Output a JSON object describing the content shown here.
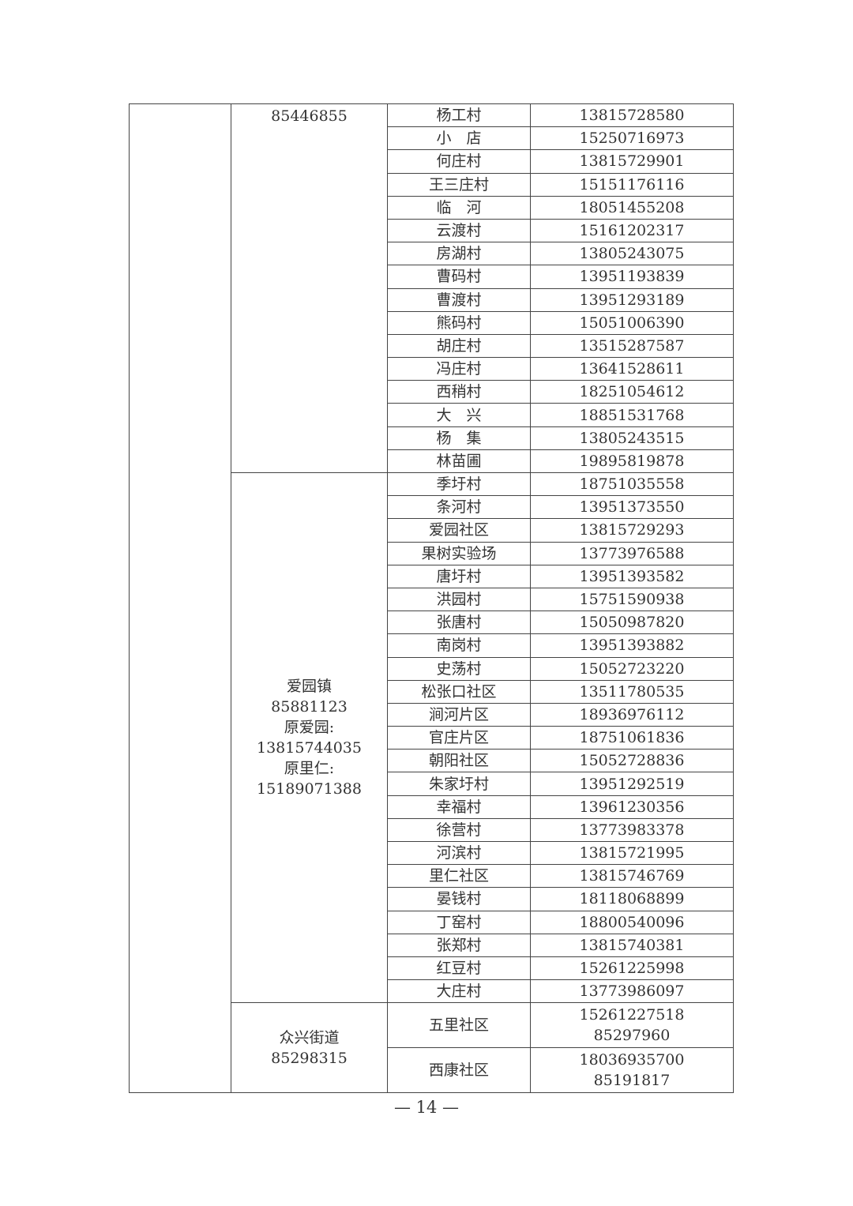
{
  "groups": [
    {
      "contact": [
        "85446855"
      ],
      "align": "top",
      "rows": [
        {
          "name": "杨工村",
          "phone": [
            "13815728580"
          ]
        },
        {
          "name": "小　店",
          "phone": [
            "15250716973"
          ]
        },
        {
          "name": "何庄村",
          "phone": [
            "13815729901"
          ]
        },
        {
          "name": "王三庄村",
          "phone": [
            "15151176116"
          ]
        },
        {
          "name": "临　河",
          "phone": [
            "18051455208"
          ]
        },
        {
          "name": "云渡村",
          "phone": [
            "15161202317"
          ]
        },
        {
          "name": "房湖村",
          "phone": [
            "13805243075"
          ]
        },
        {
          "name": "曹码村",
          "phone": [
            "13951193839"
          ]
        },
        {
          "name": "曹渡村",
          "phone": [
            "13951293189"
          ]
        },
        {
          "name": "熊码村",
          "phone": [
            "15051006390"
          ]
        },
        {
          "name": "胡庄村",
          "phone": [
            "13515287587"
          ]
        },
        {
          "name": "冯庄村",
          "phone": [
            "13641528611"
          ]
        },
        {
          "name": "西稍村",
          "phone": [
            "18251054612"
          ]
        },
        {
          "name": "大　兴",
          "phone": [
            "18851531768"
          ]
        },
        {
          "name": "杨　集",
          "phone": [
            "13805243515"
          ]
        },
        {
          "name": "林苗圃",
          "phone": [
            "19895819878"
          ]
        }
      ]
    },
    {
      "contact": [
        "爱园镇",
        "85881123",
        "原爱园:",
        "13815744035",
        "原里仁:",
        "15189071388"
      ],
      "align": "middle",
      "rows": [
        {
          "name": "季圩村",
          "phone": [
            "18751035558"
          ]
        },
        {
          "name": "条河村",
          "phone": [
            "13951373550"
          ]
        },
        {
          "name": "爱园社区",
          "phone": [
            "13815729293"
          ]
        },
        {
          "name": "果树实验场",
          "phone": [
            "13773976588"
          ]
        },
        {
          "name": "唐圩村",
          "phone": [
            "13951393582"
          ]
        },
        {
          "name": "洪园村",
          "phone": [
            "15751590938"
          ]
        },
        {
          "name": "张唐村",
          "phone": [
            "15050987820"
          ]
        },
        {
          "name": "南岗村",
          "phone": [
            "13951393882"
          ]
        },
        {
          "name": "史荡村",
          "phone": [
            "15052723220"
          ]
        },
        {
          "name": "松张口社区",
          "phone": [
            "13511780535"
          ]
        },
        {
          "name": "涧河片区",
          "phone": [
            "18936976112"
          ]
        },
        {
          "name": "官庄片区",
          "phone": [
            "18751061836"
          ]
        },
        {
          "name": "朝阳社区",
          "phone": [
            "15052728836"
          ]
        },
        {
          "name": "朱家圩村",
          "phone": [
            "13951292519"
          ]
        },
        {
          "name": "幸福村",
          "phone": [
            "13961230356"
          ]
        },
        {
          "name": "徐营村",
          "phone": [
            "13773983378"
          ]
        },
        {
          "name": "河滨村",
          "phone": [
            "13815721995"
          ]
        },
        {
          "name": "里仁社区",
          "phone": [
            "13815746769"
          ]
        },
        {
          "name": "晏钱村",
          "phone": [
            "18118068899"
          ]
        },
        {
          "name": "丁窑村",
          "phone": [
            "18800540096"
          ]
        },
        {
          "name": "张郑村",
          "phone": [
            "13815740381"
          ]
        },
        {
          "name": "红豆村",
          "phone": [
            "15261225998"
          ]
        },
        {
          "name": "大庄村",
          "phone": [
            "13773986097"
          ]
        }
      ]
    },
    {
      "contact": [
        "众兴街道",
        "85298315"
      ],
      "align": "middle",
      "rows": [
        {
          "name": "五里社区",
          "phone": [
            "15261227518",
            "85297960"
          ]
        },
        {
          "name": "西康社区",
          "phone": [
            "18036935700",
            "85191817"
          ]
        }
      ]
    }
  ],
  "page_number": "— 14 —"
}
